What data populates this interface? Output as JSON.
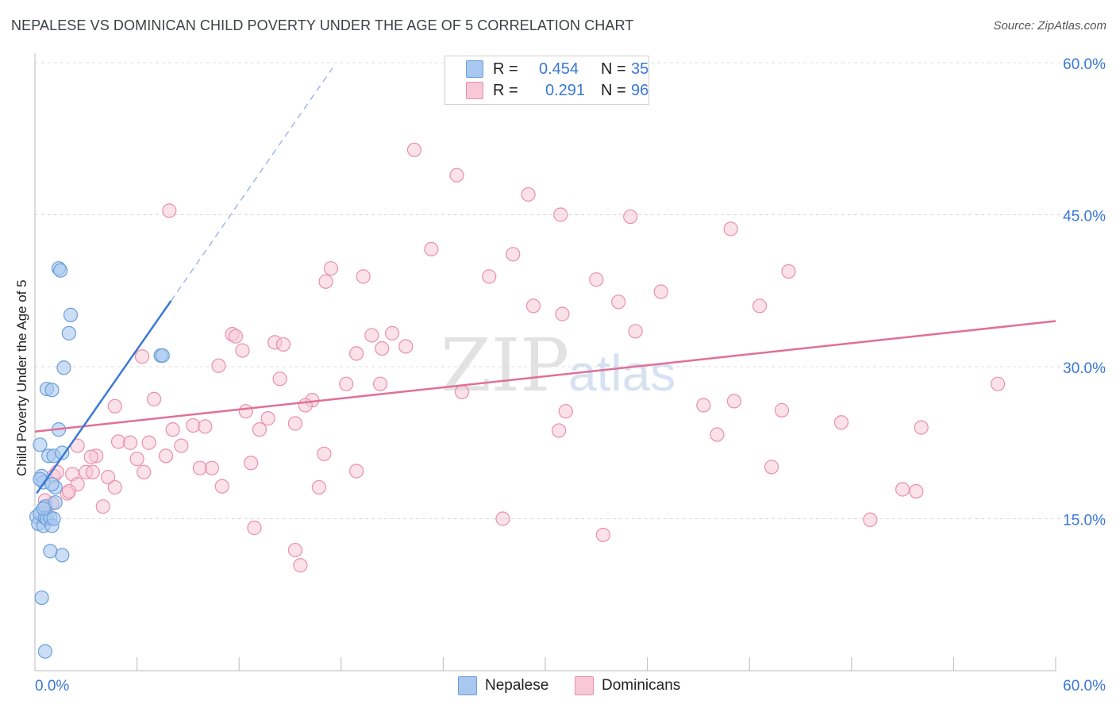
{
  "title": "NEPALESE VS DOMINICAN CHILD POVERTY UNDER THE AGE OF 5 CORRELATION CHART",
  "source": "Source: ZipAtlas.com",
  "watermark": {
    "zip": "ZIP",
    "atlas": "atlas"
  },
  "legend": {
    "nepalese": {
      "r_label": "R =",
      "r_value": "0.454",
      "n_label": "N =",
      "n_value": "35",
      "color": "#a9c8f0",
      "stroke": "#6a9ed8"
    },
    "dominicans": {
      "r_label": "R =",
      "r_value": "0.291",
      "n_label": "N =",
      "n_value": "96",
      "color": "#f8c8d6",
      "stroke": "#e890aa"
    }
  },
  "series_labels": {
    "nepalese": "Nepalese",
    "dominicans": "Dominicans"
  },
  "chart_data": {
    "type": "scatter",
    "title": "NEPALESE VS DOMINICAN CHILD POVERTY UNDER THE AGE OF 5 CORRELATION CHART",
    "xlabel": "",
    "ylabel": "Child Poverty Under the Age of 5",
    "xlim": [
      0,
      60
    ],
    "ylim": [
      0,
      60
    ],
    "x_tick_labels": [
      "0.0%",
      "60.0%"
    ],
    "y_tick_labels": [
      "15.0%",
      "30.0%",
      "45.0%",
      "60.0%"
    ],
    "y_ticks": [
      15,
      30,
      45,
      60
    ],
    "grid": true,
    "series": [
      {
        "name": "Nepalese",
        "color": "#3a78d4",
        "trend": {
          "x0": 0.1,
          "y0": 17.5,
          "x1": 8.0,
          "y1": 36.5,
          "x_dash_end": 17.5,
          "y_dash_end": 59.5
        },
        "points": [
          [
            0.1,
            15.2
          ],
          [
            0.2,
            14.5
          ],
          [
            0.3,
            22.3
          ],
          [
            0.3,
            15.5
          ],
          [
            0.4,
            19.2
          ],
          [
            0.5,
            18.6
          ],
          [
            0.5,
            14.3
          ],
          [
            0.6,
            16.2
          ],
          [
            0.6,
            15.1
          ],
          [
            0.7,
            15.0
          ],
          [
            0.8,
            21.2
          ],
          [
            0.9,
            15.1
          ],
          [
            1.0,
            14.3
          ],
          [
            1.1,
            15.0
          ],
          [
            0.7,
            27.8
          ],
          [
            1.0,
            27.7
          ],
          [
            1.2,
            18.1
          ],
          [
            1.4,
            23.8
          ],
          [
            1.2,
            16.6
          ],
          [
            1.6,
            11.4
          ],
          [
            1.1,
            21.2
          ],
          [
            1.7,
            29.9
          ],
          [
            1.4,
            39.7
          ],
          [
            1.5,
            39.5
          ],
          [
            2.0,
            33.3
          ],
          [
            2.1,
            35.1
          ],
          [
            1.6,
            21.5
          ],
          [
            0.9,
            11.8
          ],
          [
            0.4,
            7.2
          ],
          [
            0.6,
            1.9
          ],
          [
            7.4,
            31.1
          ],
          [
            7.5,
            31.1
          ],
          [
            0.3,
            18.9
          ],
          [
            0.5,
            16.0
          ],
          [
            1.0,
            18.4
          ]
        ]
      },
      {
        "name": "Dominicans",
        "color": "#e07098",
        "trend": {
          "x0": 0,
          "y0": 23.6,
          "x1": 60,
          "y1": 34.5
        },
        "points": [
          [
            22.3,
            51.4
          ],
          [
            24.8,
            48.9
          ],
          [
            29.0,
            47.0
          ],
          [
            7.9,
            45.4
          ],
          [
            30.9,
            45.0
          ],
          [
            35.0,
            44.8
          ],
          [
            40.9,
            43.6
          ],
          [
            23.3,
            41.6
          ],
          [
            28.1,
            41.1
          ],
          [
            17.4,
            39.7
          ],
          [
            19.3,
            38.9
          ],
          [
            26.7,
            38.9
          ],
          [
            33.0,
            38.6
          ],
          [
            44.3,
            39.4
          ],
          [
            17.1,
            38.4
          ],
          [
            36.8,
            37.4
          ],
          [
            29.3,
            36.0
          ],
          [
            31.0,
            35.2
          ],
          [
            34.3,
            36.4
          ],
          [
            42.6,
            36.0
          ],
          [
            11.6,
            33.2
          ],
          [
            11.8,
            33.0
          ],
          [
            19.8,
            33.1
          ],
          [
            21.0,
            33.3
          ],
          [
            14.1,
            32.4
          ],
          [
            14.6,
            32.2
          ],
          [
            20.4,
            31.8
          ],
          [
            21.8,
            32.0
          ],
          [
            12.2,
            31.6
          ],
          [
            18.9,
            31.3
          ],
          [
            35.3,
            33.5
          ],
          [
            6.3,
            31.0
          ],
          [
            10.8,
            30.1
          ],
          [
            14.4,
            28.8
          ],
          [
            18.3,
            28.3
          ],
          [
            20.3,
            28.3
          ],
          [
            7.0,
            26.8
          ],
          [
            4.7,
            26.1
          ],
          [
            16.3,
            26.7
          ],
          [
            12.4,
            25.6
          ],
          [
            15.9,
            26.2
          ],
          [
            25.1,
            27.5
          ],
          [
            31.2,
            25.6
          ],
          [
            39.3,
            26.2
          ],
          [
            41.1,
            26.6
          ],
          [
            43.9,
            25.7
          ],
          [
            56.6,
            28.3
          ],
          [
            13.7,
            24.9
          ],
          [
            15.3,
            24.4
          ],
          [
            8.1,
            23.8
          ],
          [
            9.3,
            24.2
          ],
          [
            10.0,
            24.1
          ],
          [
            13.2,
            23.8
          ],
          [
            30.8,
            23.7
          ],
          [
            40.1,
            23.3
          ],
          [
            47.4,
            24.5
          ],
          [
            52.1,
            24.0
          ],
          [
            4.9,
            22.6
          ],
          [
            5.6,
            22.5
          ],
          [
            8.6,
            22.2
          ],
          [
            2.5,
            22.2
          ],
          [
            6.7,
            22.5
          ],
          [
            3.6,
            21.2
          ],
          [
            7.7,
            21.2
          ],
          [
            17.0,
            21.4
          ],
          [
            6.0,
            20.9
          ],
          [
            12.7,
            20.5
          ],
          [
            2.2,
            19.4
          ],
          [
            3.0,
            19.6
          ],
          [
            3.4,
            19.6
          ],
          [
            6.4,
            19.6
          ],
          [
            9.7,
            20.0
          ],
          [
            10.4,
            20.0
          ],
          [
            18.9,
            19.7
          ],
          [
            43.3,
            20.1
          ],
          [
            1.1,
            19.2
          ],
          [
            1.3,
            19.6
          ],
          [
            2.5,
            18.4
          ],
          [
            4.3,
            19.1
          ],
          [
            4.7,
            18.1
          ],
          [
            11.0,
            18.2
          ],
          [
            16.7,
            18.1
          ],
          [
            1.9,
            17.5
          ],
          [
            2.0,
            17.7
          ],
          [
            51.0,
            17.9
          ],
          [
            51.8,
            17.7
          ],
          [
            1.0,
            16.5
          ],
          [
            4.0,
            16.2
          ],
          [
            27.5,
            15.0
          ],
          [
            49.1,
            14.9
          ],
          [
            12.9,
            14.1
          ],
          [
            33.4,
            13.4
          ],
          [
            15.3,
            11.9
          ],
          [
            15.6,
            10.4
          ],
          [
            0.6,
            16.8
          ],
          [
            3.3,
            21.1
          ]
        ]
      }
    ]
  }
}
